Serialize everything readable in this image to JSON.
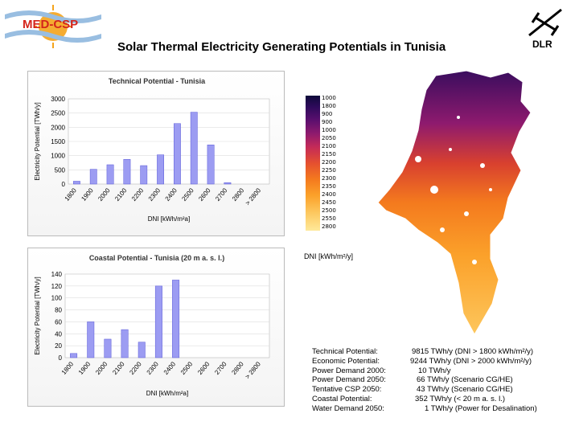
{
  "header": {
    "title": "Solar Thermal Electricity Generating Potentials in Tunisia",
    "logo_left": "MED-CSP",
    "logo_right": "DLR"
  },
  "map_legend": {
    "ticks": [
      "1000",
      "1800",
      "900",
      "900",
      "1000",
      "2050",
      "2100",
      "2150",
      "2200",
      "2250",
      "2300",
      "2350",
      "2400",
      "2450",
      "2500",
      "2550",
      "2800"
    ],
    "unit": "DNI [kWh/m²/y]",
    "colors": [
      "#0e0a3a",
      "#5a0f6e",
      "#c42a58",
      "#f47a1e",
      "#fee99a"
    ]
  },
  "stats": [
    {
      "label": "Technical Potential:",
      "value": "9815 TWh/y (DNI > 1800 kWh/m²/y)"
    },
    {
      "label": "Economic Potential:",
      "value": "9244 TWh/y (DNI > 2000 kWh/m²/y)"
    },
    {
      "label": "Power Demand 2000:",
      "value": "10 TWh/y"
    },
    {
      "label": "Power Demand 2050:",
      "value": "66 TWh/y (Scenario CG/HE)"
    },
    {
      "label": "Tentative CSP 2050:",
      "value": "43 TWh/y (Scenario CG/HE)"
    },
    {
      "label": "Coastal Potential:",
      "value": "352 TWh/y (< 20 m a. s. l.)"
    },
    {
      "label": "Water Demand 2050:",
      "value": "1 TWh/y (Power for Desalination)"
    }
  ],
  "chart_data": [
    {
      "type": "bar",
      "title": "Technical Potential - Tunisia",
      "xlabel": "DNI [kWh/m²a]",
      "ylabel": "Electricity Potential [TWh/y]",
      "categories": [
        "1800",
        "1900",
        "2000",
        "2100",
        "2200",
        "2300",
        "2400",
        "2500",
        "2600",
        "2700",
        "2800",
        "> 2800"
      ],
      "values": [
        100,
        520,
        680,
        870,
        650,
        1030,
        2130,
        2530,
        1380,
        50,
        0,
        0
      ],
      "ylim": [
        0,
        3000
      ],
      "yticks": [
        "0",
        "500",
        "1000",
        "1500",
        "2000",
        "2500",
        "3000"
      ],
      "color": "#9c9cf2"
    },
    {
      "type": "bar",
      "title": "Coastal Potential - Tunisia (20 m a. s. l.)",
      "xlabel": "DNI [kWh/m²a]",
      "ylabel": "Electricity Potential [TWh/y]",
      "categories": [
        "1800",
        "1900",
        "2000",
        "2100",
        "2200",
        "2300",
        "2400",
        "2500",
        "2600",
        "2700",
        "2800",
        "> 2800"
      ],
      "values": [
        7,
        60,
        31,
        47,
        26,
        120,
        130,
        0,
        0,
        0,
        0,
        0
      ],
      "ylim": [
        0,
        140
      ],
      "yticks": [
        "0",
        "20",
        "40",
        "60",
        "80",
        "100",
        "120",
        "140"
      ],
      "color": "#9c9cf2"
    }
  ]
}
